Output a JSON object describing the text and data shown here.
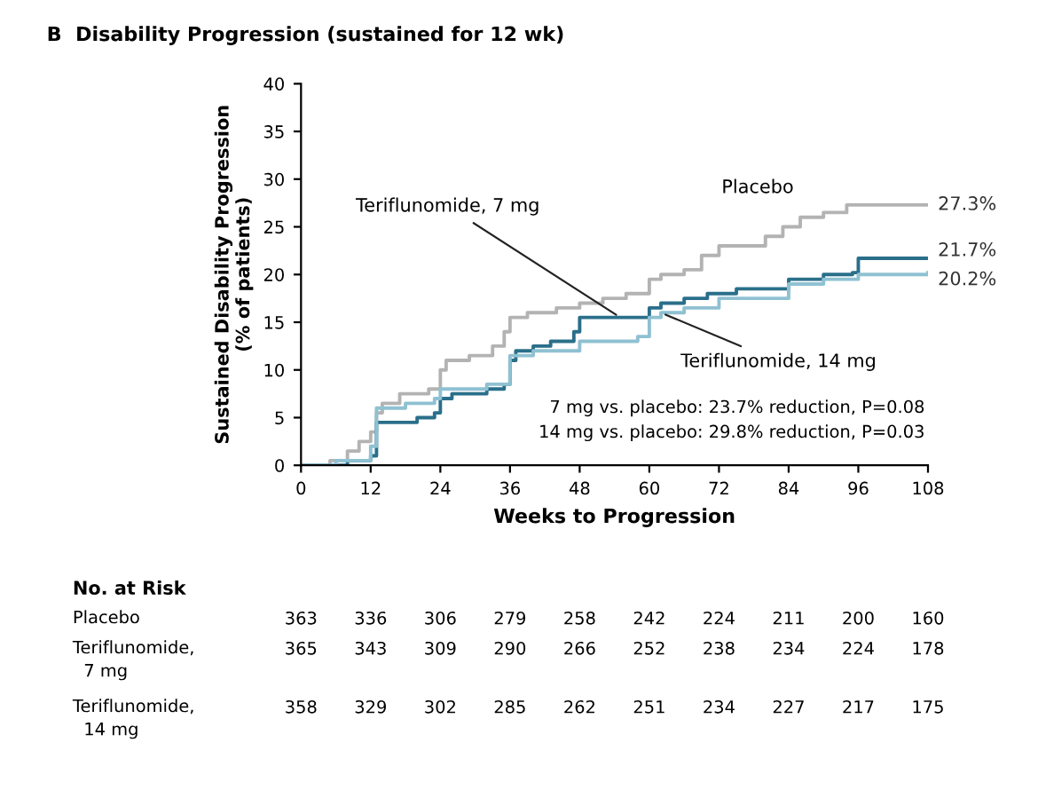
{
  "chart_data": {
    "type": "step",
    "title": "B  Disability Progression (sustained for 12 wk)",
    "xlabel": "Weeks to Progression",
    "ylabel": "Sustained Disability Progression\n(% of patients)",
    "xlim": [
      0,
      108
    ],
    "ylim": [
      0,
      40
    ],
    "xticks": [
      0,
      12,
      24,
      36,
      48,
      60,
      72,
      84,
      96,
      108
    ],
    "yticks": [
      0,
      5,
      10,
      15,
      20,
      25,
      30,
      35,
      40
    ],
    "grid": false,
    "legend": false,
    "series": [
      {
        "color": "#b3b3b3",
        "x": [
          0,
          5,
          8,
          10,
          12,
          13,
          14,
          17,
          22,
          24,
          25,
          29,
          33,
          35,
          36,
          39,
          44,
          48,
          52,
          56,
          60,
          62,
          66,
          69,
          72,
          80,
          83,
          86,
          90,
          94,
          108
        ],
        "values": [
          0,
          0.5,
          1.5,
          2.5,
          3.5,
          5.5,
          6.5,
          7.5,
          8,
          10,
          11,
          11.5,
          12.5,
          14,
          15.5,
          16,
          16.5,
          17,
          17.5,
          18,
          19.5,
          20,
          20.5,
          22,
          23,
          24,
          25,
          26,
          26.5,
          27.3,
          27.3
        ],
        "value_labels": [
          null,
          null,
          null,
          null,
          null,
          null,
          null,
          null,
          null,
          null,
          null,
          null,
          null,
          null,
          null,
          null,
          null,
          null,
          null,
          null,
          null,
          null,
          null,
          null,
          null,
          null,
          null,
          null,
          null,
          null,
          "27.3%"
        ]
      },
      {
        "color": "#2a6f8a",
        "x": [
          0,
          8,
          12,
          13,
          20,
          23,
          24,
          26,
          32,
          35,
          36,
          37,
          40,
          43,
          47,
          48,
          59,
          60,
          62,
          66,
          70,
          75,
          84,
          90,
          95,
          96,
          108
        ],
        "values": [
          0,
          0.5,
          1,
          4.5,
          5,
          5.5,
          7,
          7.5,
          8,
          8.5,
          11,
          12,
          12.5,
          13,
          14,
          15.5,
          15.5,
          16.5,
          17,
          17.5,
          18,
          18.5,
          19.5,
          20,
          20.2,
          21.7,
          21.7
        ],
        "value_labels": [
          null,
          null,
          null,
          null,
          null,
          null,
          null,
          null,
          null,
          null,
          null,
          null,
          null,
          null,
          null,
          null,
          null,
          null,
          null,
          null,
          null,
          null,
          null,
          null,
          null,
          null,
          "21.7%"
        ]
      },
      {
        "color": "#8fc1d2",
        "x": [
          0,
          6,
          12,
          13,
          18,
          23,
          24,
          32,
          36,
          40,
          48,
          58,
          60,
          62,
          66,
          72,
          84,
          90,
          96,
          108
        ],
        "values": [
          0,
          0.5,
          2,
          6,
          6.5,
          7,
          8,
          8.5,
          11.5,
          12,
          13,
          13.5,
          15.5,
          16,
          16.5,
          17.5,
          19,
          19.5,
          20,
          20.2
        ],
        "value_labels": [
          null,
          null,
          null,
          null,
          null,
          null,
          null,
          null,
          null,
          null,
          null,
          null,
          null,
          null,
          null,
          null,
          null,
          null,
          null,
          "20.2%"
        ]
      }
    ],
    "annotations": [
      {
        "text": "Placebo",
        "x": 88,
        "y": 26.5
      },
      {
        "text": "Teriflunomide, 7 mg",
        "x": 55,
        "y": 15.5
      },
      {
        "text": "Teriflunomide, 14 mg",
        "x": 62,
        "y": 16
      },
      "7 mg vs. placebo: 23.7% reduction, P=0.08",
      "14 mg vs. placebo: 29.8% reduction, P=0.03",
      "No. at Risk",
      "Placebo",
      "363",
      "336",
      "306",
      "279",
      "258",
      "242",
      "224",
      "211",
      "200",
      "160",
      "Teriflunomide,\n  7 mg",
      "365",
      "343",
      "309",
      "290",
      "266",
      "252",
      "238",
      "234",
      "224",
      "178",
      "Teriflunomide,\n  14 mg",
      "358",
      "329",
      "302",
      "285",
      "262",
      "251",
      "234",
      "227",
      "217",
      "175"
    ]
  }
}
